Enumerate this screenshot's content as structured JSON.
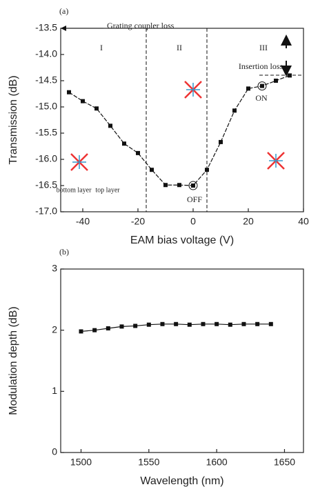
{
  "chart_data": [
    {
      "type": "line",
      "panel_label": "(a)",
      "x_label": "EAM bias voltage (V)",
      "y_label": "Transmission (dB)",
      "annotations": [
        "Grating coupler loss",
        "I",
        "II",
        "III",
        "Insertion loss",
        "ON",
        "OFF",
        "bottom layer",
        "top layer"
      ],
      "x": [
        -45,
        -40,
        -35,
        -30,
        -25,
        -20,
        -15,
        -10,
        -5,
        0,
        5,
        10,
        15,
        20,
        25,
        30,
        35
      ],
      "values": [
        -14.72,
        -14.89,
        -15.03,
        -15.36,
        -15.7,
        -15.88,
        -16.2,
        -16.49,
        -16.49,
        -16.5,
        -16.2,
        -15.67,
        -15.07,
        -14.65,
        -14.6,
        -14.5,
        -14.4
      ],
      "color": "#111111",
      "xlim": [
        -48,
        40
      ],
      "xticks": [
        -40,
        -20,
        0,
        20,
        40
      ],
      "ylim": [
        -17,
        -13.5
      ],
      "yticks": [
        {
          "value": -17,
          "label": "-17.0"
        },
        {
          "value": -16.5,
          "label": "-16.5"
        },
        {
          "value": -16,
          "label": "-16.0"
        },
        {
          "value": -15.5,
          "label": "-15.5"
        },
        {
          "value": -15,
          "label": "-15.0"
        },
        {
          "value": -14.5,
          "label": "-14.5"
        },
        {
          "value": -14,
          "label": "-14.0"
        },
        -13.5
      ]
    },
    {
      "type": "line",
      "panel_label": "(b)",
      "x_label": "Wavelength (nm)",
      "y_label": "Modulation depth (dB)",
      "x": [
        1500,
        1510,
        1520,
        1530,
        1540,
        1550,
        1560,
        1570,
        1580,
        1590,
        1600,
        1610,
        1620,
        1630,
        1640
      ],
      "values": [
        1.98,
        2.0,
        2.03,
        2.06,
        2.07,
        2.09,
        2.1,
        2.1,
        2.09,
        2.1,
        2.1,
        2.09,
        2.1,
        2.1,
        2.1
      ],
      "color": "#111111",
      "xlim": [
        1485,
        1664
      ],
      "xticks": [
        1500,
        1550,
        1600,
        1650
      ],
      "ylim": [
        0,
        3
      ],
      "yticks": [
        0,
        1,
        2,
        3
      ]
    }
  ]
}
